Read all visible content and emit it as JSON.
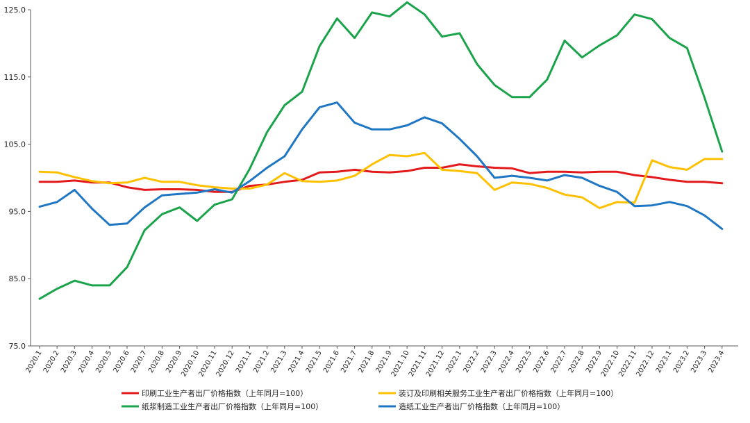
{
  "chart_data": {
    "type": "line",
    "title": "",
    "xlabel": "",
    "ylabel": "",
    "ylim": [
      75.0,
      125.0
    ],
    "yticks": [
      "75.0",
      "85.0",
      "95.0",
      "105.0",
      "115.0",
      "125.0"
    ],
    "grid": false,
    "legend_position": "bottom",
    "x": [
      "2020.1",
      "2020.2",
      "2020.3",
      "2020.4",
      "2020.5",
      "2020.6",
      "2020.7",
      "2020.8",
      "2020.9",
      "2020.10",
      "2020.11",
      "2020.12",
      "2021.1",
      "2021.2",
      "2021.3",
      "2021.4",
      "2021.5",
      "2021.6",
      "2021.7",
      "2021.8",
      "2021.9",
      "2021.10",
      "2021.11",
      "2021.12",
      "2022.1",
      "2022.2",
      "2022.3",
      "2022.4",
      "2022.5",
      "2022.6",
      "2022.7",
      "2022.8",
      "2022.9",
      "2022.10",
      "2022.11",
      "2022.12",
      "2023.1",
      "2023.2",
      "2023.3",
      "2023.4"
    ],
    "series": [
      {
        "name": "印刷工业生产者出厂价格指数（上年同月=100）",
        "color": "#e31a1c",
        "values": [
          99.4,
          99.4,
          99.6,
          99.3,
          99.3,
          98.6,
          98.2,
          98.3,
          98.3,
          98.2,
          97.9,
          97.9,
          98.8,
          99.0,
          99.4,
          99.7,
          100.8,
          100.9,
          101.2,
          100.9,
          100.8,
          101.0,
          101.5,
          101.5,
          102.0,
          101.7,
          101.5,
          101.4,
          100.7,
          100.9,
          100.9,
          100.8,
          100.9,
          100.9,
          100.4,
          100.1,
          99.7,
          99.4,
          99.4,
          99.2
        ]
      },
      {
        "name": "装订及印刷相关服务工业生产者出厂价格指数（上年同月=100）",
        "color": "#ffc000",
        "values": [
          100.9,
          100.8,
          100.1,
          99.5,
          99.2,
          99.3,
          100.0,
          99.4,
          99.4,
          98.9,
          98.6,
          98.4,
          98.4,
          99.0,
          100.7,
          99.5,
          99.4,
          99.6,
          100.3,
          102.0,
          103.4,
          103.2,
          103.7,
          101.2,
          101.0,
          100.7,
          98.2,
          99.3,
          99.1,
          98.5,
          97.5,
          97.1,
          95.5,
          96.4,
          96.3,
          102.6,
          101.6,
          101.2,
          102.8,
          102.8
        ]
      },
      {
        "name": "纸浆制造工业生产者出厂价格指数（上年同月=100）",
        "color": "#1aa34a",
        "values": [
          82.0,
          83.5,
          84.7,
          84.0,
          84.0,
          86.7,
          92.2,
          94.6,
          95.6,
          93.6,
          96.0,
          96.8,
          101.3,
          106.8,
          110.8,
          112.8,
          119.6,
          123.7,
          120.8,
          124.6,
          124.0,
          126.1,
          124.3,
          121.0,
          121.5,
          116.9,
          113.8,
          112.0,
          112.0,
          114.6,
          120.4,
          117.9,
          119.7,
          121.2,
          124.3,
          123.6,
          120.8,
          119.3,
          111.9,
          103.9
        ]
      },
      {
        "name": "造纸工业生产者出厂价格指数（上年同月=100）",
        "color": "#1f77c4",
        "values": [
          95.7,
          96.4,
          98.2,
          95.4,
          93.0,
          93.2,
          95.6,
          97.4,
          97.6,
          97.8,
          98.3,
          97.8,
          99.5,
          101.5,
          103.2,
          107.2,
          110.5,
          111.2,
          108.2,
          107.2,
          107.2,
          107.8,
          109.0,
          108.1,
          105.8,
          103.2,
          100.0,
          100.3,
          100.0,
          99.6,
          100.4,
          100.0,
          98.8,
          97.9,
          95.8,
          95.9,
          96.4,
          95.8,
          94.4,
          92.4
        ]
      }
    ]
  }
}
